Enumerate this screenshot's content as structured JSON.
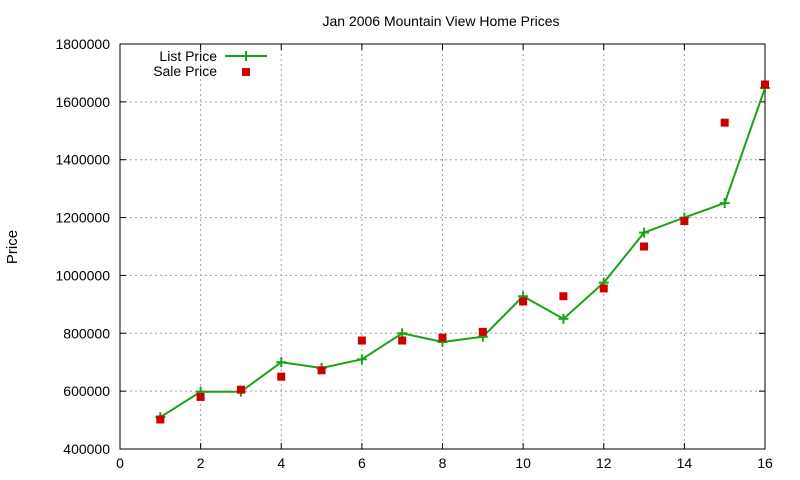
{
  "chart_data": {
    "type": "line",
    "title": "Jan 2006 Mountain View Home Prices",
    "xlabel": "",
    "ylabel": "Price",
    "xlim": [
      0,
      16
    ],
    "ylim": [
      400000,
      1800000
    ],
    "x_ticks": [
      "0",
      "2",
      "4",
      "6",
      "8",
      "10",
      "12",
      "14",
      "16"
    ],
    "y_ticks": [
      "400000",
      "600000",
      "800000",
      "1000000",
      "1200000",
      "1400000",
      "1600000",
      "1800000"
    ],
    "grid": true,
    "legend_position": "top-left",
    "series": [
      {
        "name": "List Price",
        "style": "line-with-plus-markers",
        "color": "#1aa31a",
        "x": [
          1,
          2,
          3,
          4,
          5,
          6,
          7,
          8,
          9,
          10,
          11,
          12,
          13,
          14,
          15,
          16
        ],
        "values": [
          510000,
          598000,
          598000,
          700000,
          680000,
          710000,
          800000,
          770000,
          788000,
          928000,
          850000,
          975000,
          1148000,
          1200000,
          1250000,
          1648000
        ]
      },
      {
        "name": "Sale Price",
        "style": "square-markers",
        "color": "#cc0000",
        "x": [
          1,
          2,
          3,
          4,
          5,
          6,
          7,
          8,
          9,
          10,
          11,
          12,
          13,
          14,
          15,
          16
        ],
        "values": [
          502000,
          580000,
          605000,
          650000,
          672000,
          775000,
          775000,
          785000,
          805000,
          910000,
          928000,
          955000,
          1100000,
          1188000,
          1528000,
          1660000
        ]
      }
    ]
  }
}
